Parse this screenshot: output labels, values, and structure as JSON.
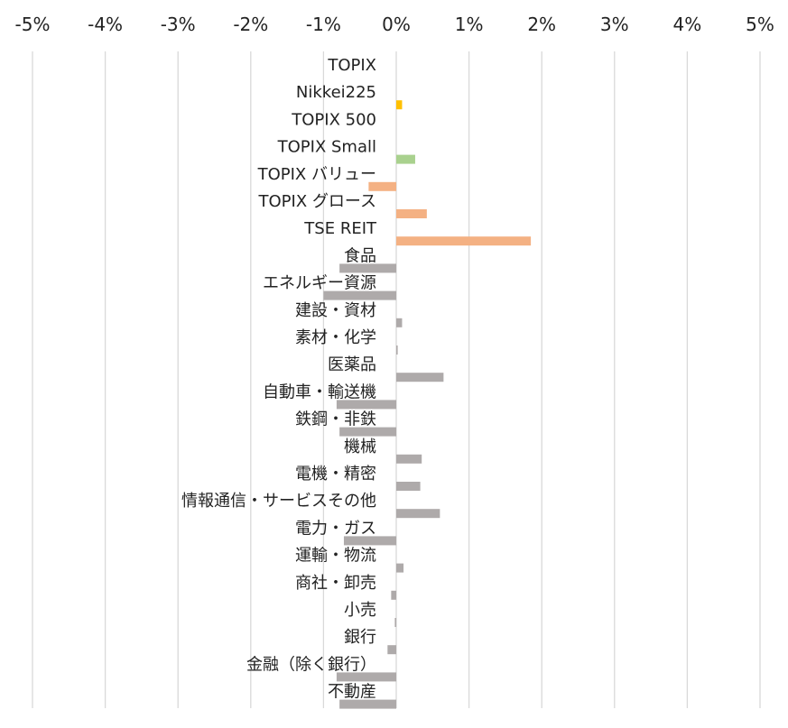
{
  "chart_data": {
    "type": "bar",
    "orientation": "horizontal",
    "x_axis_position": "top",
    "grid": true,
    "xlim": [
      -5,
      5
    ],
    "x_ticks": [
      -5,
      -4,
      -3,
      -2,
      -1,
      0,
      1,
      2,
      3,
      4,
      5
    ],
    "x_tick_labels": [
      "-5%",
      "-4%",
      "-3%",
      "-2%",
      "-1%",
      "0%",
      "1%",
      "2%",
      "3%",
      "4%",
      "5%"
    ],
    "categories": [
      "TOPIX",
      "Nikkei225",
      "TOPIX 500",
      "TOPIX Small",
      "TOPIX バリュー",
      "TOPIX グロース",
      "TSE REIT",
      "食品",
      "エネルギー資源",
      "建設・資材",
      "素材・化学",
      "医薬品",
      "自動車・輸送機",
      "鉄鋼・非鉄",
      "機械",
      "電機・精密",
      "情報通信・サービスその他",
      "電力・ガス",
      "運輸・物流",
      "商社・卸売",
      "小売",
      "銀行",
      "金融（除く銀行）",
      "不動産"
    ],
    "values": [
      0.0,
      0.08,
      0.0,
      0.26,
      -0.38,
      0.42,
      1.85,
      -0.78,
      -1.0,
      0.08,
      0.02,
      0.65,
      -0.82,
      -0.78,
      0.35,
      0.33,
      0.6,
      -0.72,
      0.1,
      -0.07,
      -0.02,
      -0.12,
      -0.82,
      -0.78
    ],
    "bar_colors": [
      "#e8e8e8",
      "#ffc000",
      "#e8e8e8",
      "#a9d18e",
      "#f4b183",
      "#f4b183",
      "#f4b183",
      "#aeaaaa",
      "#aeaaaa",
      "#aeaaaa",
      "#aeaaaa",
      "#aeaaaa",
      "#aeaaaa",
      "#aeaaaa",
      "#aeaaaa",
      "#aeaaaa",
      "#aeaaaa",
      "#aeaaaa",
      "#aeaaaa",
      "#aeaaaa",
      "#aeaaaa",
      "#aeaaaa",
      "#aeaaaa",
      "#aeaaaa"
    ],
    "gridline_color": "#d9d9d9"
  }
}
